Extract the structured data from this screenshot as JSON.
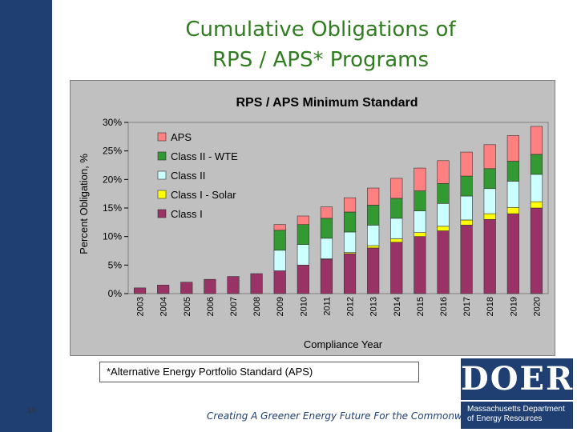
{
  "slide": {
    "title_line1": "Cumulative Obligations of",
    "title_line2": "RPS / APS* Programs",
    "footnote": "*Alternative Energy Portfolio Standard (APS)",
    "page_number": "19",
    "tagline": "Creating A Greener Energy Future For the Commonwealth"
  },
  "logo": {
    "mark": "DOER",
    "line1": "Massachusetts Department",
    "line2": "of Energy Resources"
  },
  "colors": {
    "sidebar": "#1f3f73",
    "title": "#2e7d1e",
    "plot_bg": "#c0c0c0",
    "class1": "#993366",
    "class1_solar": "#ffff00",
    "class2": "#ccffff",
    "class2_wte": "#339933",
    "aps": "#ff8080"
  },
  "chart_data": {
    "type": "bar",
    "stacked": true,
    "title": "RPS / APS Minimum Standard",
    "xlabel": "Compliance Year",
    "ylabel": "Percent Obligation, %",
    "ylim": [
      0,
      30
    ],
    "yticks": [
      "0%",
      "5%",
      "10%",
      "15%",
      "20%",
      "25%",
      "30%"
    ],
    "grid": false,
    "legend_position": "top-left",
    "categories": [
      "2003",
      "2004",
      "2005",
      "2006",
      "2007",
      "2008",
      "2009",
      "2010",
      "2011",
      "2012",
      "2013",
      "2014",
      "2015",
      "2016",
      "2017",
      "2018",
      "2019",
      "2020"
    ],
    "series": [
      {
        "name": "Class I",
        "color": "#993366",
        "values": [
          1,
          1.5,
          2,
          2.5,
          3,
          3.5,
          4,
          5,
          6,
          7,
          8,
          9,
          10,
          11,
          12,
          13,
          14,
          15
        ]
      },
      {
        "name": "Class I - Solar",
        "color": "#ffff00",
        "values": [
          0,
          0,
          0,
          0,
          0,
          0,
          0,
          0,
          0.1,
          0.2,
          0.4,
          0.6,
          0.7,
          0.8,
          0.9,
          1,
          1.1,
          1.1
        ]
      },
      {
        "name": "Class II",
        "color": "#ccffff",
        "values": [
          0,
          0,
          0,
          0,
          0,
          0,
          3.6,
          3.6,
          3.6,
          3.6,
          3.6,
          3.6,
          3.8,
          4,
          4.2,
          4.4,
          4.6,
          4.8
        ]
      },
      {
        "name": "Class II - WTE",
        "color": "#339933",
        "values": [
          0,
          0,
          0,
          0,
          0,
          0,
          3.5,
          3.5,
          3.5,
          3.5,
          3.5,
          3.5,
          3.5,
          3.5,
          3.5,
          3.5,
          3.5,
          3.5
        ]
      },
      {
        "name": "APS",
        "color": "#ff8080",
        "values": [
          0,
          0,
          0,
          0,
          0,
          0,
          1,
          1.5,
          2,
          2.5,
          3,
          3.5,
          4,
          4,
          4.2,
          4.2,
          4.5,
          4.9
        ]
      }
    ],
    "legend_order": [
      "APS",
      "Class II - WTE",
      "Class II",
      "Class I - Solar",
      "Class I"
    ]
  }
}
